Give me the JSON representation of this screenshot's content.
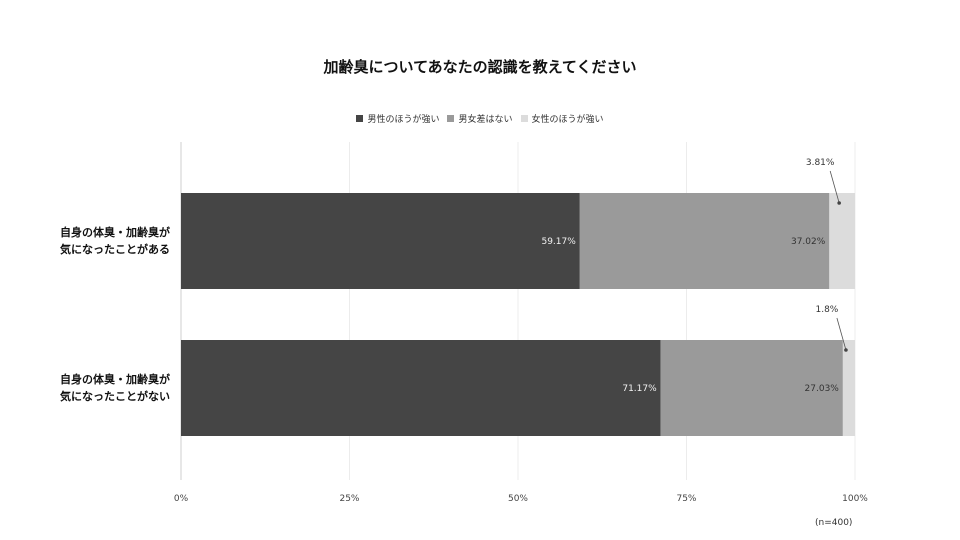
{
  "chart_data": {
    "type": "bar",
    "orientation": "horizontal",
    "stacked": true,
    "title": "加齢臭についてあなたの認識を教えてください",
    "categories": [
      [
        "自身の体臭・加齢臭が",
        "気になったことがある"
      ],
      [
        "自身の体臭・加齢臭が",
        "気になったことがない"
      ]
    ],
    "series": [
      {
        "name": "男性のほうが強い",
        "color": "#454545",
        "values": [
          59.17,
          71.17
        ],
        "labels": [
          "59.17%",
          "71.17%"
        ]
      },
      {
        "name": "男女差はない",
        "color": "#9a9a9a",
        "values": [
          37.02,
          27.03
        ],
        "labels": [
          "37.02%",
          "27.03%"
        ]
      },
      {
        "name": "女性のほうが強い",
        "color": "#dcdcdc",
        "values": [
          3.81,
          1.8
        ],
        "labels": [
          "3.81%",
          "1.8%"
        ]
      }
    ],
    "xlim": [
      0,
      100
    ],
    "xticks": [
      "0%",
      "25%",
      "50%",
      "75%",
      "100%"
    ],
    "legend_position": "top",
    "grid": true,
    "note": "(n=400)"
  }
}
